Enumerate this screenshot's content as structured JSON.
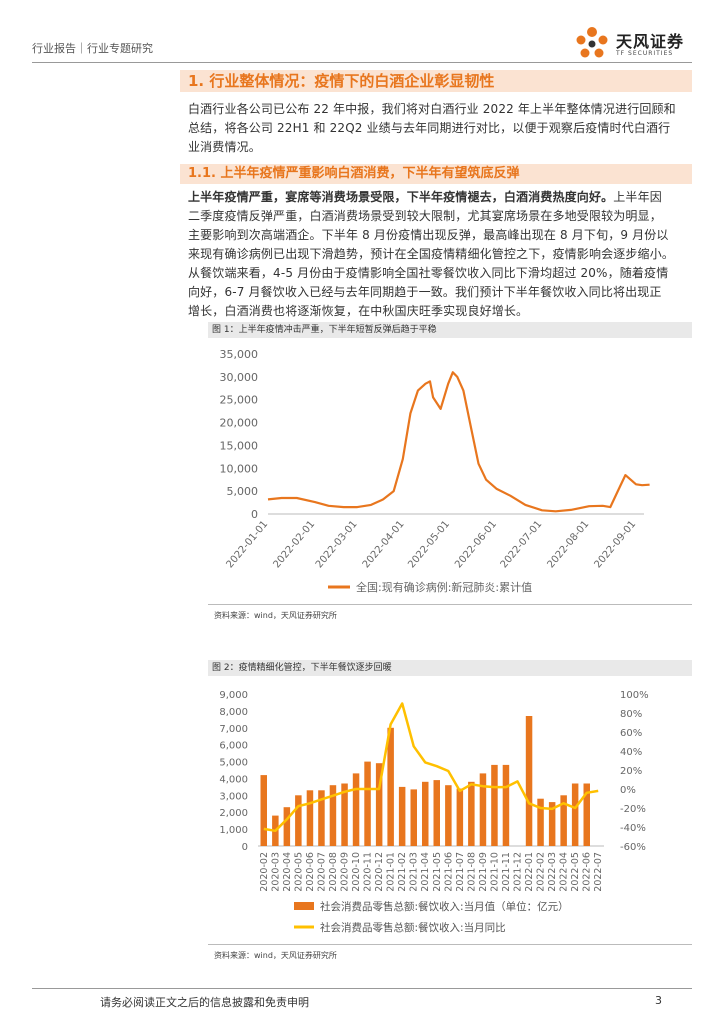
{
  "header": {
    "breadcrumb": "行业报告｜行业专题研究"
  },
  "logo": {
    "name": "天风证券",
    "sub": "TF SECURITIES"
  },
  "section1": {
    "title": "1. 行业整体情况：疫情下的白酒企业彰显韧性"
  },
  "intro": [
    "白酒行业各公司已公布 22 年中报，我们将对白酒行业 2022 年上半年整体情况进行回顾和",
    "总结，将各公司 22H1 和 22Q2 业绩与去年同期进行对比，以便于观察后疫情时代白酒行",
    "业消费情况。"
  ],
  "section11": {
    "title": "1.1. 上半年疫情严重影响白酒消费，下半年有望筑底反弹"
  },
  "body": {
    "lead": "上半年疫情严重，宴席等消费场景受限，下半年疫情褪去，白酒消费热度向好。",
    "line1_rest": "上半年因",
    "lines": [
      "二季度疫情反弹严重，白酒消费场景受到较大限制，尤其宴席场景在多地受限较为明显，",
      "主要影响到次高端酒企。下半年 8 月份疫情出现反弹，最高峰出现在 8 月下旬，9 月份以",
      "来现有确诊病例已出现下滑趋势，预计在全国疫情精细化管控之下，疫情影响会逐步缩小。",
      "从餐饮端来看，4-5 月份由于疫情影响全国社零餐饮收入同比下滑均超过 20%，随着疫情",
      "向好，6-7 月餐饮收入已经与去年同期趋于一致。我们预计下半年餐饮收入同比将出现正",
      "增长，白酒消费也将逐渐恢复，在中秋国庆旺季实现良好增长。"
    ]
  },
  "figure1": {
    "title": "图 1：上半年疫情冲击严重，下半年短暂反弹后趋于平稳",
    "source": "资料来源：wind，天风证券研究所"
  },
  "figure2": {
    "title": "图 2：疫情精细化管控，下半年餐饮逐步回暖",
    "source": "资料来源：wind，天风证券研究所"
  },
  "footer": {
    "disclaimer": "请务必阅读正文之后的信息披露和免责申明",
    "page": "3"
  },
  "chart_data": [
    {
      "type": "line",
      "x_ticks": [
        "2022-01-01",
        "2022-02-01",
        "2022-03-01",
        "2022-04-01",
        "2022-05-01",
        "2022-06-01",
        "2022-07-01",
        "2022-08-01",
        "2022-09-01"
      ],
      "y_ticks": [
        "0",
        "5,000",
        "10,000",
        "15,000",
        "20,000",
        "25,000",
        "30,000",
        "35,000"
      ],
      "ylim": [
        0,
        35000
      ],
      "series": [
        {
          "name": "全国:现有确诊病例:新冠肺炎:累计值",
          "color": "#e8761e",
          "x": [
            "2022-01-01",
            "2022-01-10",
            "2022-01-20",
            "2022-02-01",
            "2022-02-10",
            "2022-02-20",
            "2022-03-01",
            "2022-03-10",
            "2022-03-18",
            "2022-03-25",
            "2022-03-31",
            "2022-04-05",
            "2022-04-10",
            "2022-04-15",
            "2022-04-18",
            "2022-04-20",
            "2022-04-25",
            "2022-04-30",
            "2022-05-03",
            "2022-05-06",
            "2022-05-10",
            "2022-05-15",
            "2022-05-20",
            "2022-05-25",
            "2022-06-01",
            "2022-06-10",
            "2022-06-20",
            "2022-07-01",
            "2022-07-10",
            "2022-07-20",
            "2022-08-01",
            "2022-08-10",
            "2022-08-15",
            "2022-08-20",
            "2022-08-25",
            "2022-09-01",
            "2022-09-05",
            "2022-09-10"
          ],
          "values": [
            3200,
            3500,
            3500,
            2600,
            1800,
            1500,
            1500,
            2000,
            3200,
            5000,
            12000,
            22000,
            27000,
            28500,
            29000,
            25500,
            23000,
            28500,
            31000,
            30000,
            27000,
            19000,
            11000,
            7500,
            5500,
            4000,
            2000,
            800,
            600,
            900,
            1700,
            1800,
            1500,
            5000,
            8500,
            6500,
            6300,
            6400
          ]
        }
      ],
      "legend": "bottom-center"
    },
    {
      "type": "bar",
      "categories": [
        "2020-02",
        "2020-03",
        "2020-04",
        "2020-05",
        "2020-06",
        "2020-07",
        "2020-08",
        "2020-09",
        "2020-10",
        "2020-11",
        "2020-12",
        "2021-01",
        "2021-02",
        "2021-03",
        "2021-04",
        "2021-05",
        "2021-06",
        "2021-07",
        "2021-08",
        "2021-09",
        "2021-10",
        "2021-11",
        "2021-12",
        "2022-01",
        "2022-02",
        "2022-03",
        "2022-04",
        "2022-05",
        "2022-06",
        "2022-07"
      ],
      "y_ticks": [
        "0",
        "1,000",
        "2,000",
        "3,000",
        "4,000",
        "5,000",
        "6,000",
        "7,000",
        "8,000",
        "9,000"
      ],
      "y2_ticks": [
        "-60%",
        "-40%",
        "-20%",
        "0%",
        "20%",
        "40%",
        "60%",
        "80%",
        "100%"
      ],
      "ylim": [
        0,
        9000
      ],
      "y2lim": [
        -60,
        100
      ],
      "series": [
        {
          "name": "社会消费品零售总额:餐饮收入:当月值（单位：亿元）",
          "kind": "bar",
          "axis": "left",
          "color": "#e8761e",
          "values": [
            4200,
            1800,
            2300,
            3000,
            3300,
            3300,
            3600,
            3700,
            4300,
            5000,
            4900,
            7000,
            3500,
            3350,
            3800,
            3900,
            3600,
            3400,
            3800,
            4300,
            4800,
            4800,
            null,
            7700,
            2800,
            2600,
            3000,
            3700,
            3700,
            null
          ]
        },
        {
          "name": "社会消费品零售总额:餐饮收入:当月同比",
          "kind": "line",
          "axis": "right",
          "color": "#ffc000",
          "values": [
            -42,
            -44,
            -32,
            -18,
            -15,
            -11,
            -7,
            -3,
            0,
            0,
            0,
            68,
            90,
            45,
            28,
            24,
            19,
            -2,
            5,
            3,
            2,
            2,
            8,
            -15,
            -20,
            -21,
            -15,
            -20,
            -4,
            -2
          ]
        }
      ],
      "legend": "bottom-center"
    }
  ]
}
